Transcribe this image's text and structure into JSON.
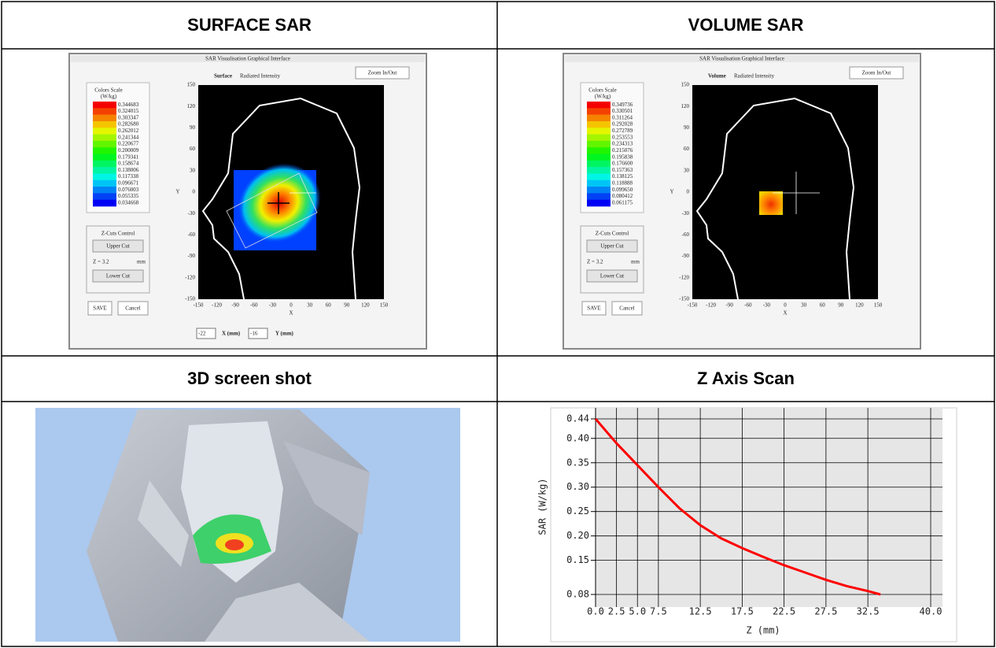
{
  "table": {
    "headers": [
      "SURFACE SAR",
      "VOLUME SAR",
      "3D screen shot",
      "Z Axis Scan"
    ]
  },
  "surface": {
    "window_title": "SAR Visualisation Graphical Interface",
    "zoom_button": "Zoom In/Out",
    "mode": "Surface",
    "mode_label": "Radiated Intensity",
    "scale_title": "Colors Scale",
    "scale_unit": "(W/kg)",
    "scale_values": [
      "0.344683",
      "0.324015",
      "0.303347",
      "0.282680",
      "0.262012",
      "0.241344",
      "0.220677",
      "0.200009",
      "0.179341",
      "0.158674",
      "0.138006",
      "0.117338",
      "0.096671",
      "0.076003",
      "0.055335",
      "0.034668"
    ],
    "zcuts_title": "Z-Cuts Control",
    "upper_button": "Upper Cut",
    "z_label": "Z = 3.2",
    "z_unit": "mm",
    "lower_button": "Lower Cut",
    "save_button": "SAVE",
    "cancel_button": "Cancel",
    "x_ticks": [
      -150,
      -120,
      -90,
      -60,
      -30,
      0,
      30,
      60,
      90,
      120,
      150
    ],
    "y_ticks": [
      150,
      120,
      90,
      60,
      30,
      0,
      -30,
      -60,
      -90,
      -120,
      -150
    ],
    "x_axis": "X",
    "y_axis": "Y",
    "x_input": "-22",
    "x_input_label": "X (mm)",
    "y_input": "-16",
    "y_input_label": "Y (mm)"
  },
  "volume": {
    "window_title": "SAR Visualisation Graphical Interface",
    "zoom_button": "Zoom In/Out",
    "mode": "Volume",
    "mode_label": "Radiated Intensity",
    "scale_title": "Colors Scale",
    "scale_unit": "(W/kg)",
    "scale_values": [
      "0.349736",
      "0.330501",
      "0.311264",
      "0.292028",
      "0.272789",
      "0.253553",
      "0.234313",
      "0.215076",
      "0.195838",
      "0.176600",
      "0.157363",
      "0.138125",
      "0.118888",
      "0.099650",
      "0.080412",
      "0.061175"
    ],
    "zcuts_title": "Z-Cuts Control",
    "upper_button": "Upper Cut",
    "z_label": "Z = 3.2",
    "z_unit": "mm",
    "lower_button": "Lower Cut",
    "save_button": "SAVE",
    "cancel_button": "Cancel",
    "x_ticks": [
      -150,
      -120,
      -90,
      -60,
      -30,
      0,
      30,
      60,
      90,
      120,
      150
    ],
    "y_ticks": [
      150,
      120,
      90,
      60,
      30,
      0,
      -30,
      -60,
      -90,
      -120,
      -150
    ],
    "x_axis": "X",
    "y_axis": "Y"
  },
  "chart_data": {
    "type": "line",
    "xlabel": "Z (mm)",
    "ylabel": "SAR (W/kg)",
    "x": [
      0,
      2.5,
      5,
      7.5,
      10,
      12.5,
      15,
      17.5,
      20,
      22.5,
      25,
      27.5,
      30,
      32.5,
      34
    ],
    "values": [
      0.44,
      0.39,
      0.345,
      0.3,
      0.257,
      0.222,
      0.195,
      0.175,
      0.157,
      0.14,
      0.125,
      0.11,
      0.097,
      0.087,
      0.08
    ],
    "color": "#ff0000",
    "xlim": [
      0,
      40
    ],
    "ylim": [
      0.08,
      0.44
    ],
    "xticks": [
      {
        "value": 0,
        "label": "0.0"
      },
      2.5,
      {
        "value": 5,
        "label": "5.0"
      },
      7.5,
      12.5,
      17.5,
      22.5,
      27.5,
      32.5,
      {
        "value": 40,
        "label": "40.0"
      }
    ],
    "yticks": [
      {
        "value": 0.08,
        "label": "0.08"
      },
      {
        "value": 0.15,
        "label": "0.15"
      },
      {
        "value": 0.2,
        "label": "0.20"
      },
      {
        "value": 0.25,
        "label": "0.25"
      },
      {
        "value": 0.3,
        "label": "0.30"
      },
      {
        "value": 0.35,
        "label": "0.35"
      },
      {
        "value": 0.4,
        "label": "0.40"
      },
      {
        "value": 0.44,
        "label": "0.44"
      }
    ],
    "grid": true
  }
}
